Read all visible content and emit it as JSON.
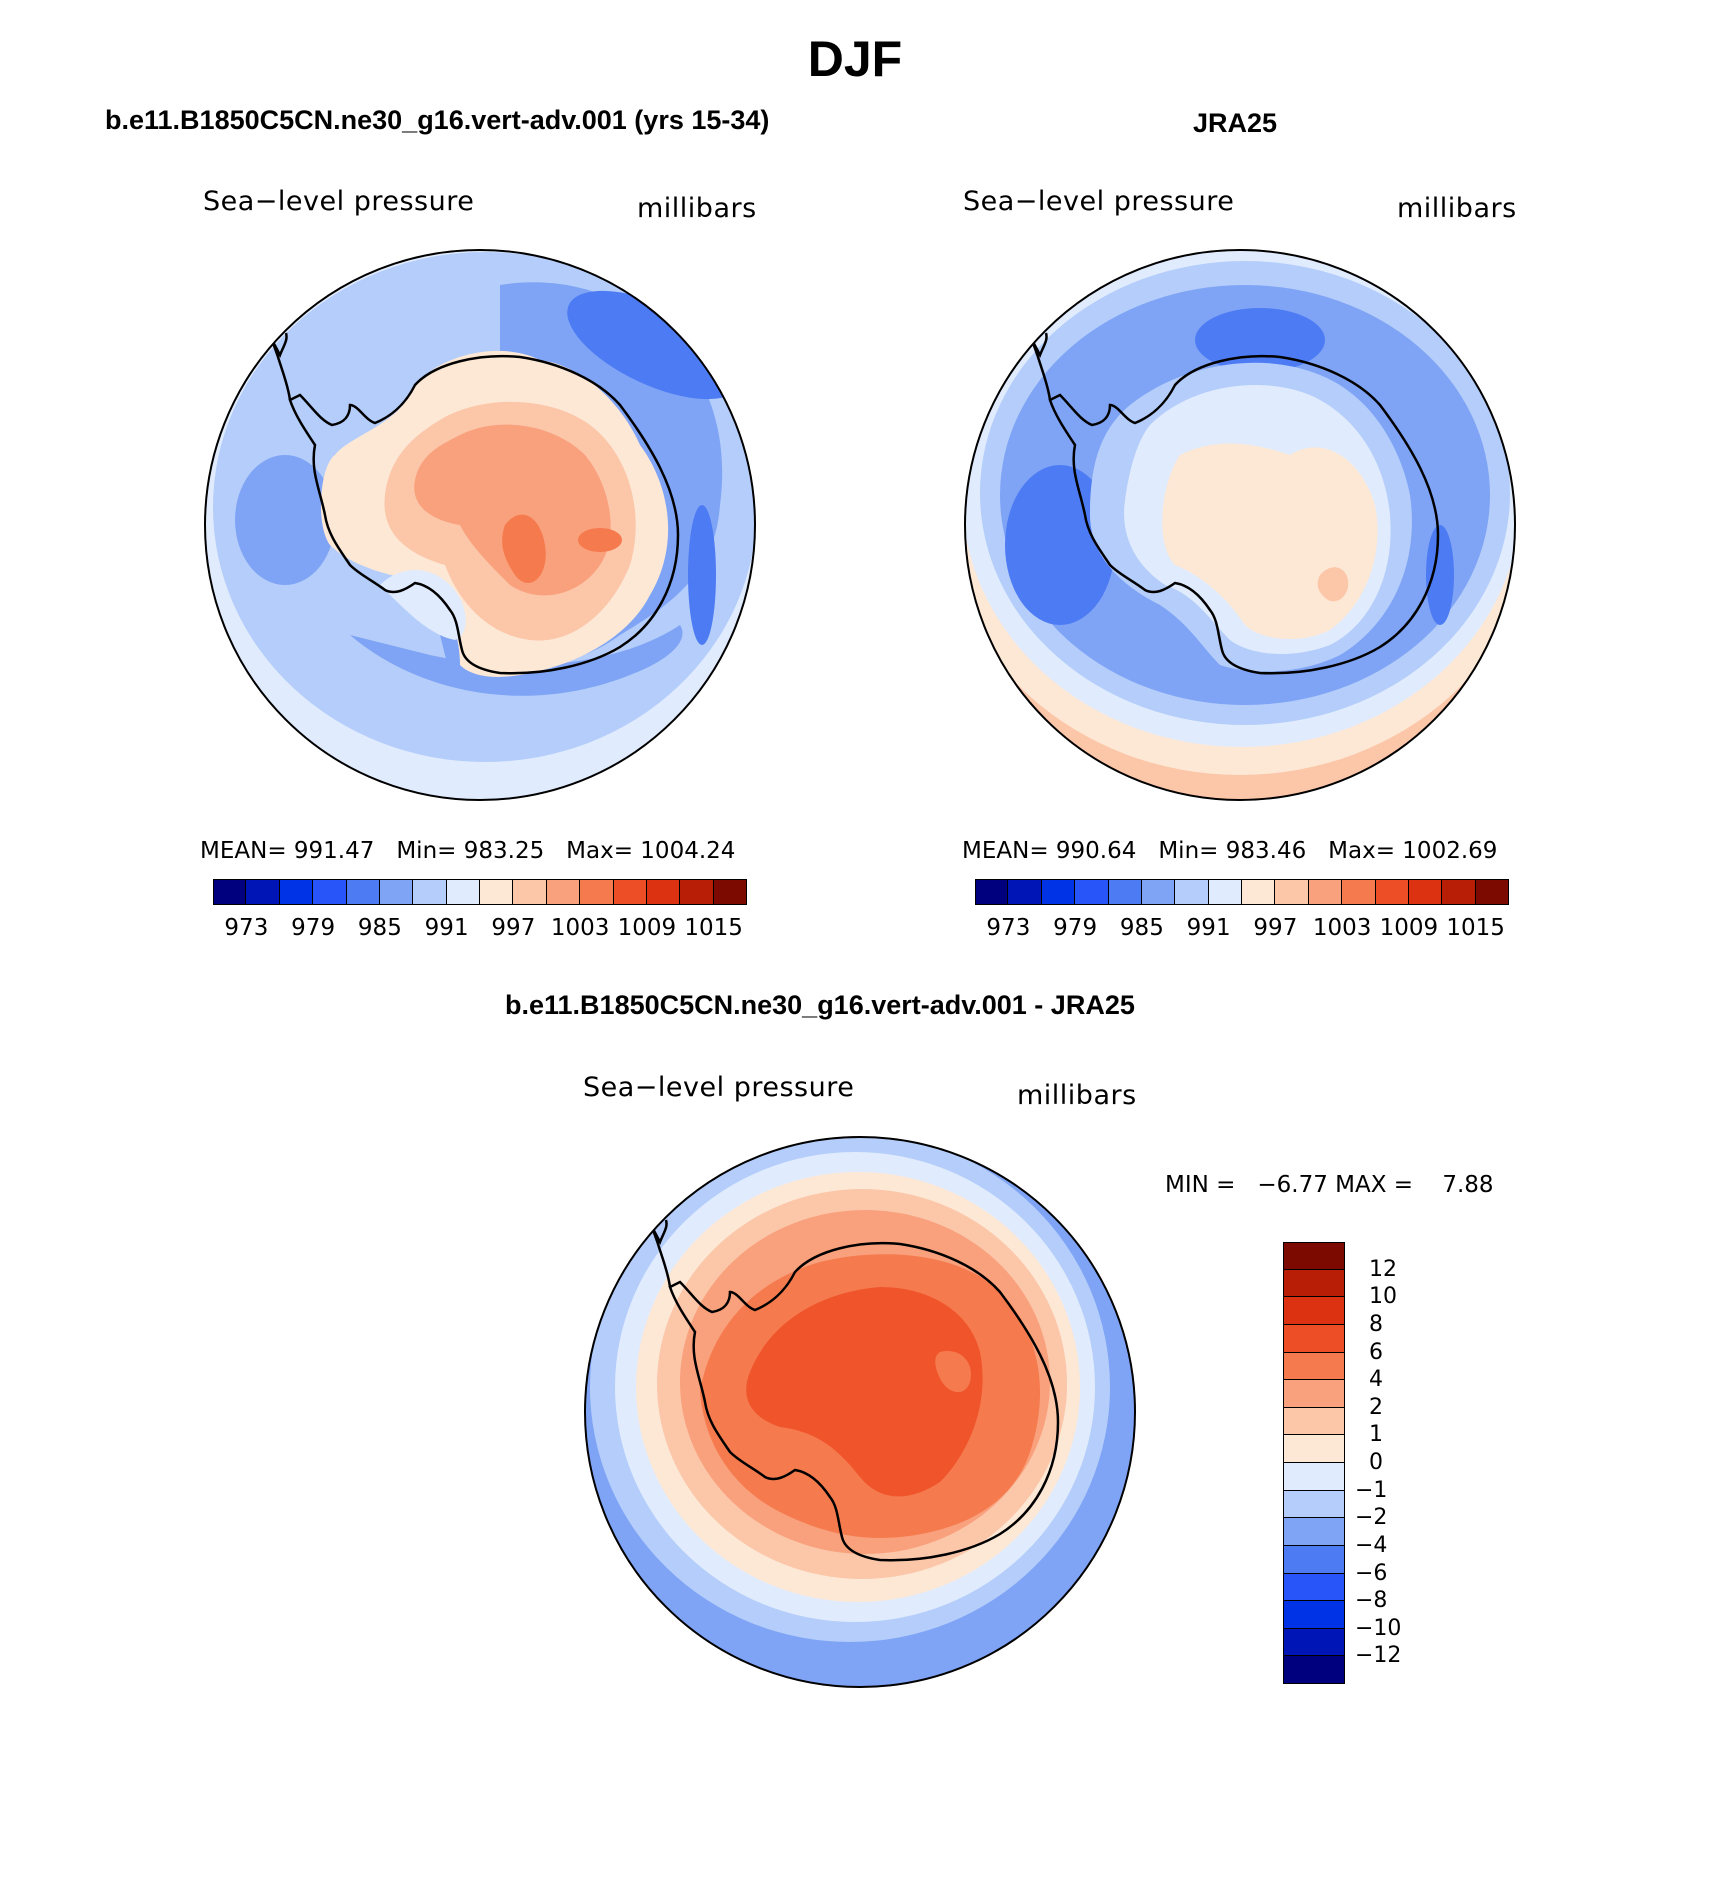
{
  "figure": {
    "title": "DJF",
    "left_panel": {
      "header": "b.e11.B1850C5CN.ne30_g16.vert-adv.001 (yrs 15-34)",
      "variable": "Sea−level pressure",
      "units": "millibars",
      "stats": {
        "mean_label": "MEAN=",
        "mean": "991.47",
        "min_label": "Min=",
        "min": "983.25",
        "max_label": "Max=",
        "max": "1004.24"
      }
    },
    "right_panel": {
      "header": "JRA25",
      "variable": "Sea−level pressure",
      "units": "millibars",
      "stats": {
        "mean_label": "MEAN=",
        "mean": "990.64",
        "min_label": "Min=",
        "min": "983.46",
        "max_label": "Max=",
        "max": "1002.69"
      }
    },
    "shared_colorbar": {
      "tick_labels": [
        "973",
        "979",
        "985",
        "991",
        "997",
        "1003",
        "1009",
        "1015"
      ],
      "colors": [
        "#00007f",
        "#0015b6",
        "#0033e6",
        "#2755fa",
        "#4d7bf3",
        "#7fa4f5",
        "#b4cdfa",
        "#e0ebfd",
        "#fde8d6",
        "#fcc6a9",
        "#f9a07c",
        "#f57a4e",
        "#ee4e26",
        "#dc3211",
        "#b81d05",
        "#7d0a01"
      ]
    },
    "diff_panel": {
      "header": "b.e11.B1850C5CN.ne30_g16.vert-adv.001 - JRA25",
      "variable": "Sea−level pressure",
      "units": "millibars",
      "minmax": {
        "min_label": "MIN =",
        "min": "−6.77",
        "max_label": "MAX =",
        "max": "7.88"
      },
      "colorbar": {
        "tick_labels": [
          "12",
          "10",
          "8",
          "6",
          "4",
          "2",
          "1",
          "0",
          "−1",
          "−2",
          "−4",
          "−6",
          "−8",
          "−10",
          "−12"
        ],
        "colors_top_to_bottom": [
          "#7d0a01",
          "#b81d05",
          "#dc3211",
          "#ee4e26",
          "#f57a4e",
          "#f9a07c",
          "#fcc6a9",
          "#fde8d6",
          "#e0ebfd",
          "#b4cdfa",
          "#7fa4f5",
          "#4d7bf3",
          "#2755fa",
          "#0033e6",
          "#0015b6",
          "#00007f"
        ]
      }
    }
  }
}
